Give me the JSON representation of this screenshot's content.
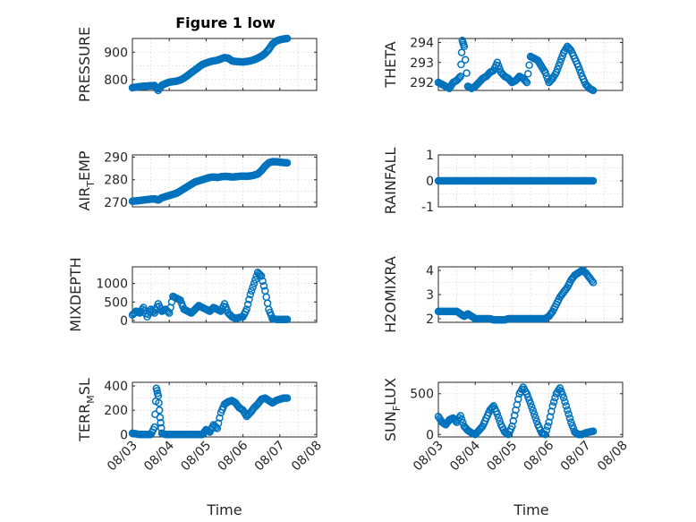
{
  "figure": {
    "title": "Figure 1 low"
  },
  "chart_data": [
    {
      "id": "pressure",
      "type": "scatter",
      "title": "Figure 1 low",
      "ylabel": "PRESSURE",
      "ylim": [
        760,
        950
      ],
      "yticks": [
        800,
        900
      ],
      "ytick_labels": [
        "800",
        "900"
      ],
      "xlim": [
        0,
        5
      ],
      "xticks": [
        0,
        1,
        2,
        3,
        4,
        5
      ],
      "xtick_labels": [
        "08/03",
        "08/04",
        "08/05",
        "08/06",
        "08/07",
        "08/08"
      ],
      "x": [
        0.0,
        0.1,
        0.2,
        0.3,
        0.4,
        0.5,
        0.6,
        0.7,
        0.8,
        0.9,
        1.0,
        1.1,
        1.2,
        1.3,
        1.4,
        1.5,
        1.6,
        1.7,
        1.8,
        1.9,
        2.0,
        2.1,
        2.2,
        2.3,
        2.4,
        2.5,
        2.6,
        2.7,
        2.8,
        2.9,
        3.0,
        3.1,
        3.2,
        3.3,
        3.4,
        3.5,
        3.6,
        3.7,
        3.8,
        3.9,
        4.0,
        4.1,
        4.2
      ],
      "y": [
        770,
        772,
        774,
        775,
        776,
        777,
        778,
        760,
        779,
        785,
        790,
        792,
        794,
        798,
        805,
        815,
        825,
        835,
        845,
        855,
        860,
        865,
        868,
        870,
        875,
        880,
        878,
        868,
        866,
        865,
        864,
        866,
        868,
        872,
        878,
        885,
        895,
        910,
        930,
        940,
        945,
        948,
        950
      ]
    },
    {
      "id": "theta",
      "type": "scatter",
      "ylabel": "THETA",
      "ylim": [
        291.6,
        294.2
      ],
      "yticks": [
        292,
        293,
        294
      ],
      "ytick_labels": [
        "292",
        "293",
        "294"
      ],
      "xlim": [
        0,
        5
      ],
      "xticks": [
        0,
        1,
        2,
        3,
        4,
        5
      ],
      "xtick_labels": [
        "08/03",
        "08/04",
        "08/05",
        "08/06",
        "08/07",
        "08/08"
      ],
      "x": [
        0.0,
        0.1,
        0.2,
        0.3,
        0.4,
        0.5,
        0.6,
        0.65,
        0.7,
        0.8,
        0.9,
        1.0,
        1.1,
        1.2,
        1.3,
        1.4,
        1.5,
        1.6,
        1.7,
        1.8,
        1.9,
        2.0,
        2.1,
        2.2,
        2.3,
        2.4,
        2.5,
        2.6,
        2.7,
        2.8,
        2.9,
        3.0,
        3.1,
        3.2,
        3.3,
        3.4,
        3.5,
        3.6,
        3.7,
        3.8,
        3.9,
        4.0,
        4.1,
        4.2
      ],
      "y": [
        292.0,
        291.9,
        291.8,
        291.7,
        292.0,
        292.1,
        292.3,
        294.1,
        293.8,
        291.8,
        291.7,
        291.8,
        292.0,
        292.2,
        292.3,
        292.5,
        292.6,
        293.0,
        292.5,
        292.3,
        292.2,
        292.0,
        292.1,
        292.3,
        292.2,
        292.0,
        293.3,
        293.2,
        293.1,
        292.8,
        292.5,
        292.0,
        292.2,
        292.5,
        293.0,
        293.5,
        293.8,
        293.6,
        293.2,
        292.8,
        292.3,
        291.9,
        291.7,
        291.6
      ]
    },
    {
      "id": "air_temp",
      "type": "scatter",
      "ylabel": "AIR",
      "ylabel_sub": "T",
      "ylabel_rest": "EMP",
      "ylim": [
        268,
        291
      ],
      "yticks": [
        270,
        280,
        290
      ],
      "ytick_labels": [
        "270",
        "280",
        "290"
      ],
      "xlim": [
        0,
        5
      ],
      "xticks": [
        0,
        1,
        2,
        3,
        4,
        5
      ],
      "xtick_labels": [
        "08/03",
        "08/04",
        "08/05",
        "08/06",
        "08/07",
        "08/08"
      ],
      "x": [
        0.0,
        0.1,
        0.2,
        0.3,
        0.4,
        0.5,
        0.6,
        0.7,
        0.8,
        0.9,
        1.0,
        1.1,
        1.2,
        1.3,
        1.4,
        1.5,
        1.6,
        1.7,
        1.8,
        1.9,
        2.0,
        2.1,
        2.2,
        2.3,
        2.4,
        2.5,
        2.6,
        2.7,
        2.8,
        2.9,
        3.0,
        3.1,
        3.2,
        3.3,
        3.4,
        3.5,
        3.6,
        3.7,
        3.8,
        3.9,
        4.0,
        4.1,
        4.2
      ],
      "y": [
        270.5,
        270.6,
        270.8,
        271.0,
        271.2,
        271.4,
        271.5,
        271.0,
        272.0,
        272.5,
        273.0,
        273.5,
        274.0,
        275.0,
        276.0,
        277.0,
        278.0,
        279.0,
        279.5,
        280.0,
        280.5,
        281.0,
        281.2,
        281.0,
        281.3,
        281.5,
        281.4,
        281.2,
        281.3,
        281.5,
        281.6,
        281.5,
        281.7,
        282.0,
        282.5,
        284.0,
        286.0,
        287.5,
        288.0,
        288.0,
        287.8,
        287.6,
        287.5
      ]
    },
    {
      "id": "rainfall",
      "type": "scatter",
      "ylabel": "RAINFALL",
      "ylim": [
        -1,
        1
      ],
      "yticks": [
        -1,
        0,
        1
      ],
      "ytick_labels": [
        "-1",
        "0",
        "1"
      ],
      "xlim": [
        0,
        5
      ],
      "xticks": [
        0,
        1,
        2,
        3,
        4,
        5
      ],
      "xtick_labels": [
        "08/03",
        "08/04",
        "08/05",
        "08/06",
        "08/07",
        "08/08"
      ],
      "x": [
        0.0,
        0.1,
        0.2,
        0.3,
        0.4,
        0.5,
        0.6,
        0.7,
        0.8,
        0.9,
        1.0,
        1.1,
        1.2,
        1.3,
        1.4,
        1.5,
        1.6,
        1.7,
        1.8,
        1.9,
        2.0,
        2.1,
        2.2,
        2.3,
        2.4,
        2.5,
        2.6,
        2.7,
        2.8,
        2.9,
        3.0,
        3.1,
        3.2,
        3.3,
        3.4,
        3.5,
        3.6,
        3.7,
        3.8,
        3.9,
        4.0,
        4.1,
        4.2
      ],
      "y": [
        0,
        0,
        0,
        0,
        0,
        0,
        0,
        0,
        0,
        0,
        0,
        0,
        0,
        0,
        0,
        0,
        0,
        0,
        0,
        0,
        0,
        0,
        0,
        0,
        0,
        0,
        0,
        0,
        0,
        0,
        0,
        0,
        0,
        0,
        0,
        0,
        0,
        0,
        0,
        0,
        0,
        0,
        0
      ]
    },
    {
      "id": "mixdepth",
      "type": "scatter",
      "ylabel": "MIXDEPTH",
      "ylim": [
        -50,
        1450
      ],
      "yticks": [
        0,
        500,
        1000
      ],
      "ytick_labels": [
        "0",
        "500",
        "1000"
      ],
      "xlim": [
        0,
        5
      ],
      "xticks": [
        0,
        1,
        2,
        3,
        4,
        5
      ],
      "xtick_labels": [
        "08/03",
        "08/04",
        "08/05",
        "08/06",
        "08/07",
        "08/08"
      ],
      "x": [
        0.0,
        0.1,
        0.2,
        0.3,
        0.4,
        0.5,
        0.6,
        0.7,
        0.8,
        0.9,
        1.0,
        1.1,
        1.2,
        1.3,
        1.4,
        1.5,
        1.6,
        1.7,
        1.8,
        1.9,
        2.0,
        2.1,
        2.2,
        2.3,
        2.4,
        2.5,
        2.6,
        2.7,
        2.8,
        2.9,
        3.0,
        3.1,
        3.2,
        3.3,
        3.4,
        3.5,
        3.6,
        3.7,
        3.8,
        3.9,
        4.0,
        4.1,
        4.2
      ],
      "y": [
        150,
        250,
        200,
        350,
        100,
        300,
        200,
        450,
        250,
        300,
        200,
        650,
        600,
        550,
        300,
        250,
        200,
        300,
        400,
        350,
        300,
        250,
        350,
        300,
        250,
        450,
        200,
        100,
        50,
        80,
        100,
        300,
        700,
        1000,
        1300,
        1200,
        800,
        300,
        50,
        30,
        30,
        30,
        30
      ]
    },
    {
      "id": "h2omixra",
      "type": "scatter",
      "ylabel": "H2OMIXRA",
      "ylim": [
        1.85,
        4.15
      ],
      "yticks": [
        2,
        3,
        4
      ],
      "ytick_labels": [
        "2",
        "3",
        "4"
      ],
      "xlim": [
        0,
        5
      ],
      "xticks": [
        0,
        1,
        2,
        3,
        4,
        5
      ],
      "xtick_labels": [
        "08/03",
        "08/04",
        "08/05",
        "08/06",
        "08/07",
        "08/08"
      ],
      "x": [
        0.0,
        0.1,
        0.2,
        0.3,
        0.4,
        0.5,
        0.6,
        0.7,
        0.8,
        0.9,
        1.0,
        1.1,
        1.2,
        1.3,
        1.4,
        1.5,
        1.6,
        1.7,
        1.8,
        1.9,
        2.0,
        2.1,
        2.2,
        2.3,
        2.4,
        2.5,
        2.6,
        2.7,
        2.8,
        2.9,
        3.0,
        3.1,
        3.2,
        3.3,
        3.4,
        3.5,
        3.6,
        3.7,
        3.8,
        3.9,
        4.0,
        4.1,
        4.2
      ],
      "y": [
        2.3,
        2.3,
        2.3,
        2.3,
        2.3,
        2.3,
        2.2,
        2.1,
        2.2,
        2.1,
        2.0,
        2.0,
        2.0,
        2.0,
        2.0,
        1.95,
        1.95,
        1.95,
        1.95,
        2.0,
        2.0,
        2.0,
        2.0,
        2.0,
        2.0,
        2.0,
        2.0,
        2.0,
        2.0,
        2.0,
        2.1,
        2.3,
        2.6,
        2.9,
        3.1,
        3.3,
        3.6,
        3.8,
        3.9,
        4.0,
        3.9,
        3.7,
        3.5
      ]
    },
    {
      "id": "terr_msl",
      "type": "scatter",
      "ylabel": "TERR",
      "ylabel_sub": "M",
      "ylabel_rest": "SL",
      "ylim": [
        -20,
        430
      ],
      "yticks": [
        0,
        200,
        400
      ],
      "ytick_labels": [
        "0",
        "200",
        "400"
      ],
      "xlim": [
        0,
        5
      ],
      "xticks": [
        0,
        1,
        2,
        3,
        4,
        5
      ],
      "xtick_labels": [
        "08/03",
        "08/04",
        "08/05",
        "08/06",
        "08/07",
        "08/08"
      ],
      "x": [
        0.0,
        0.1,
        0.2,
        0.3,
        0.4,
        0.5,
        0.6,
        0.65,
        0.7,
        0.75,
        0.8,
        0.9,
        1.0,
        1.1,
        1.2,
        1.3,
        1.4,
        1.5,
        1.6,
        1.7,
        1.8,
        1.9,
        2.0,
        2.1,
        2.2,
        2.3,
        2.4,
        2.5,
        2.6,
        2.7,
        2.8,
        2.9,
        3.0,
        3.1,
        3.2,
        3.3,
        3.4,
        3.5,
        3.6,
        3.7,
        3.8,
        3.9,
        4.0,
        4.1,
        4.2
      ],
      "y": [
        10,
        5,
        0,
        0,
        0,
        0,
        60,
        380,
        320,
        140,
        10,
        0,
        0,
        0,
        0,
        0,
        0,
        0,
        0,
        0,
        0,
        0,
        40,
        20,
        80,
        50,
        180,
        250,
        270,
        280,
        260,
        220,
        200,
        150,
        180,
        220,
        250,
        290,
        300,
        280,
        260,
        280,
        290,
        300,
        300
      ]
    },
    {
      "id": "sun_flux",
      "type": "scatter",
      "ylabel": "SUN",
      "ylabel_sub": "F",
      "ylabel_rest": "LUX",
      "ylim": [
        -30,
        640
      ],
      "yticks": [
        0,
        500
      ],
      "ytick_labels": [
        "0",
        "500"
      ],
      "xlim": [
        0,
        5
      ],
      "xticks": [
        0,
        1,
        2,
        3,
        4,
        5
      ],
      "xtick_labels": [
        "08/03",
        "08/04",
        "08/05",
        "08/06",
        "08/07",
        "08/08"
      ],
      "x": [
        0.0,
        0.1,
        0.2,
        0.3,
        0.4,
        0.5,
        0.6,
        0.7,
        0.8,
        0.9,
        1.0,
        1.1,
        1.2,
        1.3,
        1.4,
        1.5,
        1.6,
        1.7,
        1.8,
        1.9,
        2.0,
        2.1,
        2.2,
        2.3,
        2.4,
        2.5,
        2.6,
        2.7,
        2.8,
        2.9,
        3.0,
        3.1,
        3.2,
        3.3,
        3.4,
        3.5,
        3.6,
        3.7,
        3.8,
        3.9,
        4.0,
        4.1,
        4.2
      ],
      "y": [
        220,
        150,
        120,
        180,
        200,
        150,
        230,
        100,
        50,
        20,
        0,
        50,
        100,
        200,
        300,
        350,
        250,
        120,
        30,
        0,
        100,
        300,
        500,
        580,
        500,
        380,
        250,
        120,
        20,
        0,
        150,
        350,
        500,
        570,
        450,
        300,
        150,
        30,
        0,
        0,
        20,
        30,
        40
      ]
    }
  ],
  "xlabel": "Time"
}
